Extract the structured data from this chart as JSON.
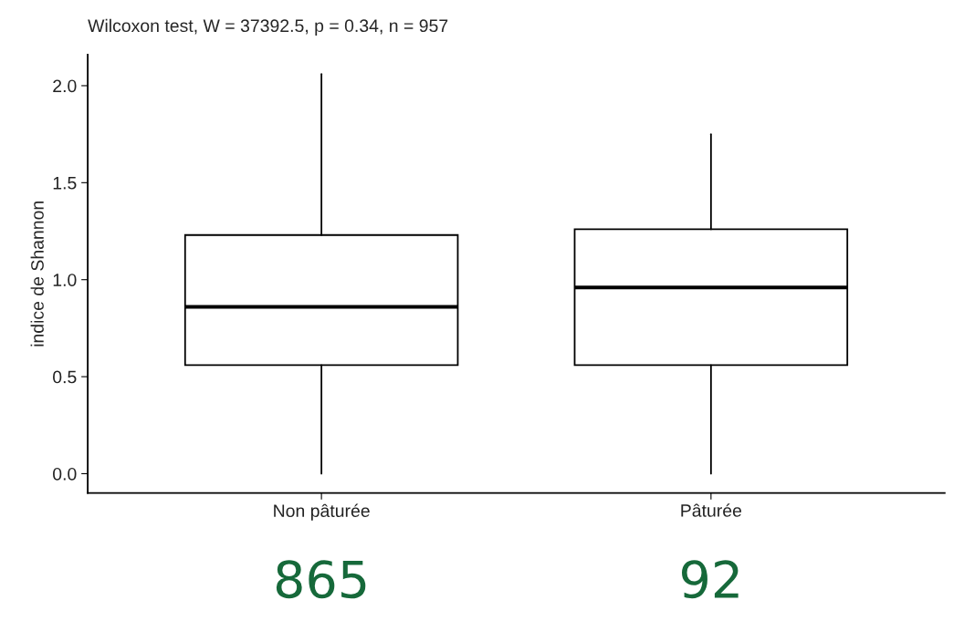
{
  "chart_data": {
    "type": "box",
    "title": "Wilcoxon test, W = 37392.5, p = 0.34, n = 957",
    "ylabel": "indice de Shannon",
    "categories": [
      "Non pâturée",
      "Pâturée"
    ],
    "boxes": [
      {
        "low": 0.0,
        "q1": 0.56,
        "median": 0.86,
        "q3": 1.23,
        "high": 2.06
      },
      {
        "low": 0.0,
        "q1": 0.56,
        "median": 0.96,
        "q3": 1.26,
        "high": 1.75
      }
    ],
    "ylim": [
      -0.1,
      2.16
    ],
    "yticks": [
      {
        "value": 0,
        "label": "0.0"
      },
      {
        "value": 0.5,
        "label": "0.5"
      },
      {
        "value": 1,
        "label": "1.0"
      },
      {
        "value": 1.5,
        "label": "1.5"
      },
      {
        "value": 2,
        "label": "2.0"
      }
    ],
    "grid": false,
    "legend": false,
    "annotations": [
      "865",
      "92"
    ]
  }
}
